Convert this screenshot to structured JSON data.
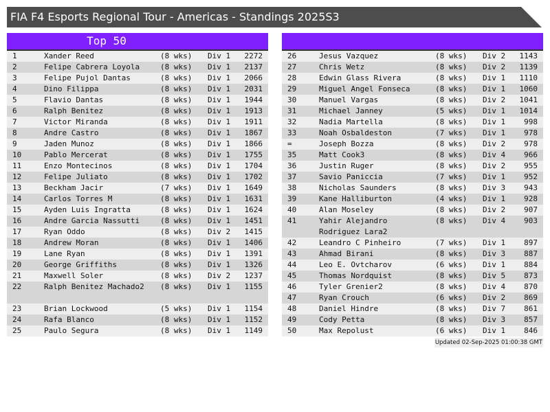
{
  "title": "FIA F4 Esports Regional Tour - Americas - Standings 2025S3",
  "left_header": "Top 50",
  "right_header": "",
  "updated": "Updated 02-Sep-2025 01:00:38 GMT",
  "colors": {
    "header": "#8020ff",
    "title_bar": "#4d4d4d",
    "row_light": "#eeeeee",
    "row_dark": "#d6d6d6"
  },
  "left_rows": [
    [
      "1",
      "Xander Reed",
      "(8 wks)",
      "Div 1",
      "2272"
    ],
    [
      "2",
      "Felipe Cabrera Loyola",
      "(8 wks)",
      "Div 1",
      "2137"
    ],
    [
      "3",
      "Felipe Pujol Dantas",
      "(8 wks)",
      "Div 1",
      "2066"
    ],
    [
      "4",
      "Dino Filippa",
      "(8 wks)",
      "Div 1",
      "2031"
    ],
    [
      "5",
      "Flavio Dantas",
      "(8 wks)",
      "Div 1",
      "1944"
    ],
    [
      "6",
      "Ralph Benitez",
      "(8 wks)",
      "Div 1",
      "1913"
    ],
    [
      "7",
      "Victor Miranda",
      "(8 wks)",
      "Div 1",
      "1911"
    ],
    [
      "8",
      "Andre Castro",
      "(8 wks)",
      "Div 1",
      "1867"
    ],
    [
      "9",
      "Jaden Munoz",
      "(8 wks)",
      "Div 1",
      "1866"
    ],
    [
      "10",
      "Pablo Mercerat",
      "(8 wks)",
      "Div 1",
      "1755"
    ],
    [
      "11",
      "Enzo Montecinos",
      "(8 wks)",
      "Div 1",
      "1704"
    ],
    [
      "12",
      "Felipe Juliato",
      "(8 wks)",
      "Div 1",
      "1702"
    ],
    [
      "13",
      "Beckham Jacir",
      "(7 wks)",
      "Div 1",
      "1649"
    ],
    [
      "14",
      "Carlos Torres M",
      "(8 wks)",
      "Div 1",
      "1631"
    ],
    [
      "15",
      "Ayden Luis Ingratta",
      "(8 wks)",
      "Div 1",
      "1624"
    ],
    [
      "16",
      "Andre Garcia Nassutti",
      "(8 wks)",
      "Div 1",
      "1451"
    ],
    [
      "17",
      "Ryan Oddo",
      "(8 wks)",
      "Div 2",
      "1415"
    ],
    [
      "18",
      "Andrew Moran",
      "(8 wks)",
      "Div 1",
      "1406"
    ],
    [
      "19",
      "Lane Ryan",
      "(8 wks)",
      "Div 1",
      "1391"
    ],
    [
      "20",
      "George Griffiths",
      "(8 wks)",
      "Div 1",
      "1326"
    ],
    [
      "21",
      "Maxwell Soler",
      "(8 wks)",
      "Div 2",
      "1237"
    ],
    [
      "22",
      "Ralph Benitez Machado2",
      "(8 wks)",
      "Div 1",
      "1155"
    ],
    [
      "23",
      "Brian Lockwood",
      "(5 wks)",
      "Div 1",
      "1154"
    ],
    [
      "24",
      "Rafa Blanco",
      "(8 wks)",
      "Div 1",
      "1152"
    ],
    [
      "25",
      "Paulo Segura",
      "(8 wks)",
      "Div 1",
      "1149"
    ]
  ],
  "right_rows": [
    [
      "26",
      "Jesus Vazquez",
      "(8 wks)",
      "Div 2",
      "1143"
    ],
    [
      "27",
      "Chris Wetz",
      "(8 wks)",
      "Div 2",
      "1139"
    ],
    [
      "28",
      "Edwin Glass Rivera",
      "(8 wks)",
      "Div 1",
      "1110"
    ],
    [
      "29",
      "Miguel Angel Fonseca",
      "(8 wks)",
      "Div 1",
      "1060"
    ],
    [
      "30",
      "Manuel Vargas",
      "(8 wks)",
      "Div 2",
      "1041"
    ],
    [
      "31",
      "Michael Janney",
      "(5 wks)",
      "Div 1",
      "1014"
    ],
    [
      "32",
      "Nadia Martella",
      "(8 wks)",
      "Div 1",
      "998"
    ],
    [
      "33",
      "Noah Osbaldeston",
      "(7 wks)",
      "Div 1",
      "978"
    ],
    [
      "=",
      "Joseph Bozza",
      "(8 wks)",
      "Div 2",
      "978"
    ],
    [
      "35",
      "Matt Cook3",
      "(8 wks)",
      "Div 4",
      "966"
    ],
    [
      "36",
      "Justin Ruger",
      "(8 wks)",
      "Div 2",
      "955"
    ],
    [
      "37",
      "Savio Paniccia",
      "(7 wks)",
      "Div 1",
      "952"
    ],
    [
      "38",
      "Nicholas Saunders",
      "(8 wks)",
      "Div 3",
      "943"
    ],
    [
      "39",
      "Kane Halliburton",
      "(4 wks)",
      "Div 1",
      "928"
    ],
    [
      "40",
      "Alan Moseley",
      "(8 wks)",
      "Div 2",
      "907"
    ],
    [
      "41",
      "Yahir Alejandro Rodriguez Lara2",
      "(8 wks)",
      "Div 4",
      "903"
    ],
    [
      "42",
      "Leandro C Pinheiro",
      "(7 wks)",
      "Div 1",
      "897"
    ],
    [
      "43",
      "Ahmad Birani",
      "(8 wks)",
      "Div 3",
      "887"
    ],
    [
      "44",
      "Leo E. Ovtcharov",
      "(6 wks)",
      "Div 1",
      "884"
    ],
    [
      "45",
      "Thomas Nordquist",
      "(8 wks)",
      "Div 5",
      "873"
    ],
    [
      "46",
      "Tyler Grenier2",
      "(8 wks)",
      "Div 4",
      "870"
    ],
    [
      "47",
      "Ryan Crouch",
      "(6 wks)",
      "Div 2",
      "869"
    ],
    [
      "48",
      "Daniel Hindre",
      "(8 wks)",
      "Div 7",
      "861"
    ],
    [
      "49",
      "Cody Petta",
      "(8 wks)",
      "Div 3",
      "857"
    ],
    [
      "50",
      "Max Repolust",
      "(6 wks)",
      "Div 1",
      "846"
    ]
  ]
}
